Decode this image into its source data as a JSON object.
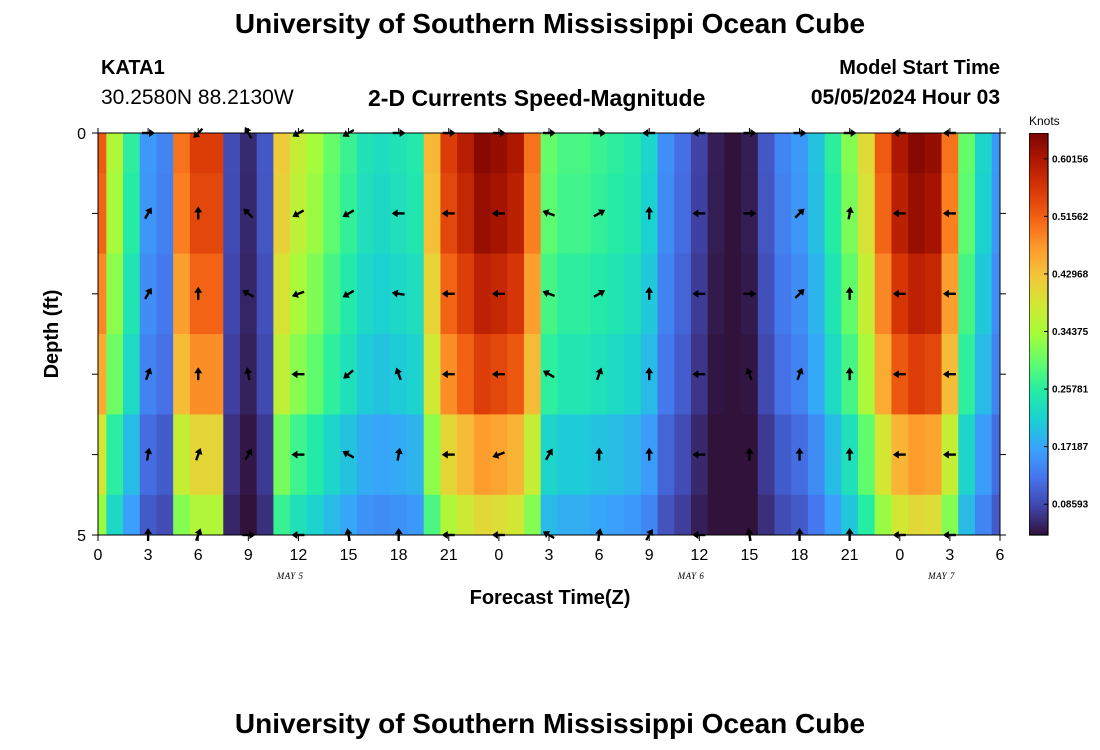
{
  "header": {
    "title": "University of Southern Mississippi Ocean Cube",
    "station_id": "KATA1",
    "coordinates": "30.2580N  88.2130W",
    "subtitle": "2-D Currents Speed-Magnitude",
    "model_start_label": "Model Start Time",
    "model_start_value": "05/05/2024 Hour 03",
    "footer_title": "University of Southern Mississippi Ocean Cube"
  },
  "colors": {
    "ramp": [
      "#30123b",
      "#4145ab",
      "#4675ed",
      "#39a2fc",
      "#1bcfd4",
      "#24eca6",
      "#61fc6c",
      "#a4fc3b",
      "#d1e834",
      "#f3c63a",
      "#fe9b2d",
      "#f36315",
      "#d93806",
      "#b11901",
      "#7a0402"
    ],
    "arrow": "#000000",
    "axis": "#000000"
  },
  "chart_data": {
    "type": "heatmap",
    "title": "2-D Currents Speed-Magnitude",
    "xlabel": "Forecast Time(Z)",
    "ylabel": "Depth (ft)",
    "x_range": [
      0,
      54
    ],
    "y_range": [
      0,
      5
    ],
    "x_ticks": [
      0,
      3,
      6,
      9,
      12,
      15,
      18,
      21,
      24,
      27,
      30,
      33,
      36,
      39,
      42,
      45,
      48,
      51,
      54
    ],
    "x_tick_labels": [
      "0",
      "3",
      "6",
      "9",
      "12",
      "15",
      "18",
      "21",
      "0",
      "3",
      "6",
      "9",
      "12",
      "15",
      "18",
      "21",
      "0",
      "3",
      "6"
    ],
    "date_labels": [
      {
        "hour": 11.5,
        "label": "MAY 5"
      },
      {
        "hour": 35.5,
        "label": "MAY 6"
      },
      {
        "hour": 50.5,
        "label": "MAY 7"
      }
    ],
    "y_ticks": [
      0,
      1,
      2,
      3,
      4,
      5
    ],
    "y_tick_labels": [
      "0",
      "",
      "",
      "",
      "",
      "5"
    ],
    "colorbar": {
      "title": "Knots",
      "min": 0.04,
      "max": 0.64,
      "ticks": [
        0.08593,
        0.17187,
        0.25781,
        0.34375,
        0.42968,
        0.51562,
        0.60156
      ],
      "tick_labels": [
        "0.08593",
        "0.17187",
        "0.25781",
        "0.34375",
        "0.42968",
        "0.51562",
        "0.60156"
      ]
    },
    "depth_rows": [
      0,
      1,
      2,
      3,
      4,
      5
    ],
    "profile_hours": [
      0,
      1,
      2,
      3,
      4,
      5,
      6,
      7,
      8,
      9,
      10,
      11,
      12,
      13,
      14,
      15,
      16,
      17,
      18,
      19,
      20,
      21,
      22,
      23,
      24,
      25,
      26,
      27,
      28,
      29,
      30,
      31,
      32,
      33,
      34,
      35,
      36,
      37,
      38,
      39,
      40,
      41,
      42,
      43,
      44,
      45,
      46,
      47,
      48,
      49,
      50,
      51,
      52,
      53,
      54
    ],
    "surface_speed": [
      0.52,
      0.35,
      0.26,
      0.16,
      0.14,
      0.5,
      0.55,
      0.55,
      0.09,
      0.06,
      0.1,
      0.42,
      0.37,
      0.34,
      0.3,
      0.27,
      0.24,
      0.23,
      0.24,
      0.25,
      0.44,
      0.55,
      0.59,
      0.63,
      0.62,
      0.6,
      0.5,
      0.3,
      0.28,
      0.28,
      0.27,
      0.26,
      0.25,
      0.22,
      0.15,
      0.12,
      0.08,
      0.05,
      0.04,
      0.05,
      0.1,
      0.14,
      0.16,
      0.2,
      0.26,
      0.32,
      0.4,
      0.52,
      0.6,
      0.63,
      0.62,
      0.5,
      0.3,
      0.22,
      0.16
    ],
    "depth_factors": [
      1.0,
      0.98,
      0.93,
      0.87,
      0.74,
      0.64
    ],
    "arrow_hours": [
      3,
      6,
      9,
      12,
      15,
      18,
      21,
      24,
      27,
      30,
      33,
      36,
      39,
      42,
      45,
      48,
      51
    ],
    "arrow_directions_deg": [
      [
        0,
        225,
        120,
        210,
        210,
        0,
        0,
        0,
        0,
        0,
        180,
        180,
        0,
        0,
        0,
        180,
        180
      ],
      [
        60,
        90,
        135,
        210,
        210,
        180,
        180,
        180,
        160,
        30,
        90,
        180,
        0,
        45,
        80,
        180,
        180
      ],
      [
        60,
        90,
        150,
        200,
        210,
        170,
        180,
        180,
        160,
        30,
        90,
        180,
        0,
        45,
        90,
        180,
        180
      ],
      [
        70,
        90,
        100,
        180,
        220,
        110,
        180,
        180,
        150,
        70,
        90,
        180,
        110,
        70,
        90,
        180,
        180
      ],
      [
        80,
        70,
        60,
        180,
        150,
        80,
        180,
        200,
        60,
        90,
        90,
        180,
        90,
        90,
        90,
        180,
        180
      ],
      [
        90,
        70,
        0,
        180,
        100,
        90,
        180,
        180,
        150,
        80,
        60,
        180,
        100,
        90,
        90,
        180,
        180
      ]
    ]
  }
}
